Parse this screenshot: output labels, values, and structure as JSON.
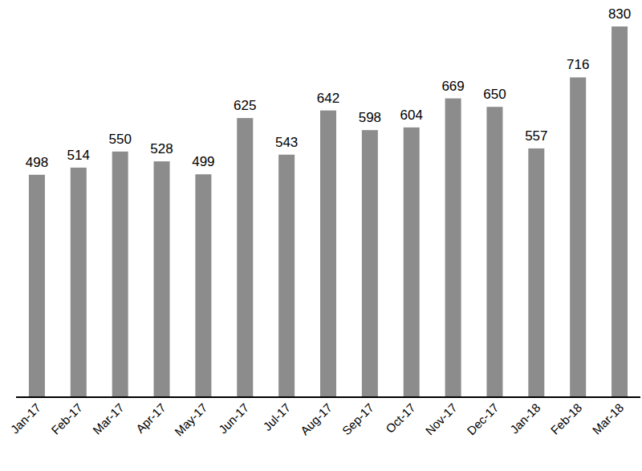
{
  "chart_data": {
    "type": "bar",
    "categories": [
      "Jan-17",
      "Feb-17",
      "Mar-17",
      "Apr-17",
      "May-17",
      "Jun-17",
      "Jul-17",
      "Aug-17",
      "Sep-17",
      "Oct-17",
      "Nov-17",
      "Dec-17",
      "Jan-18",
      "Feb-18",
      "Mar-18"
    ],
    "values": [
      498,
      514,
      550,
      528,
      499,
      625,
      543,
      642,
      598,
      604,
      669,
      650,
      557,
      716,
      830
    ],
    "color": "#8c8c8c",
    "ylim": [
      0,
      830
    ],
    "grid": false,
    "data_labels": true,
    "tick_labels": "x"
  }
}
